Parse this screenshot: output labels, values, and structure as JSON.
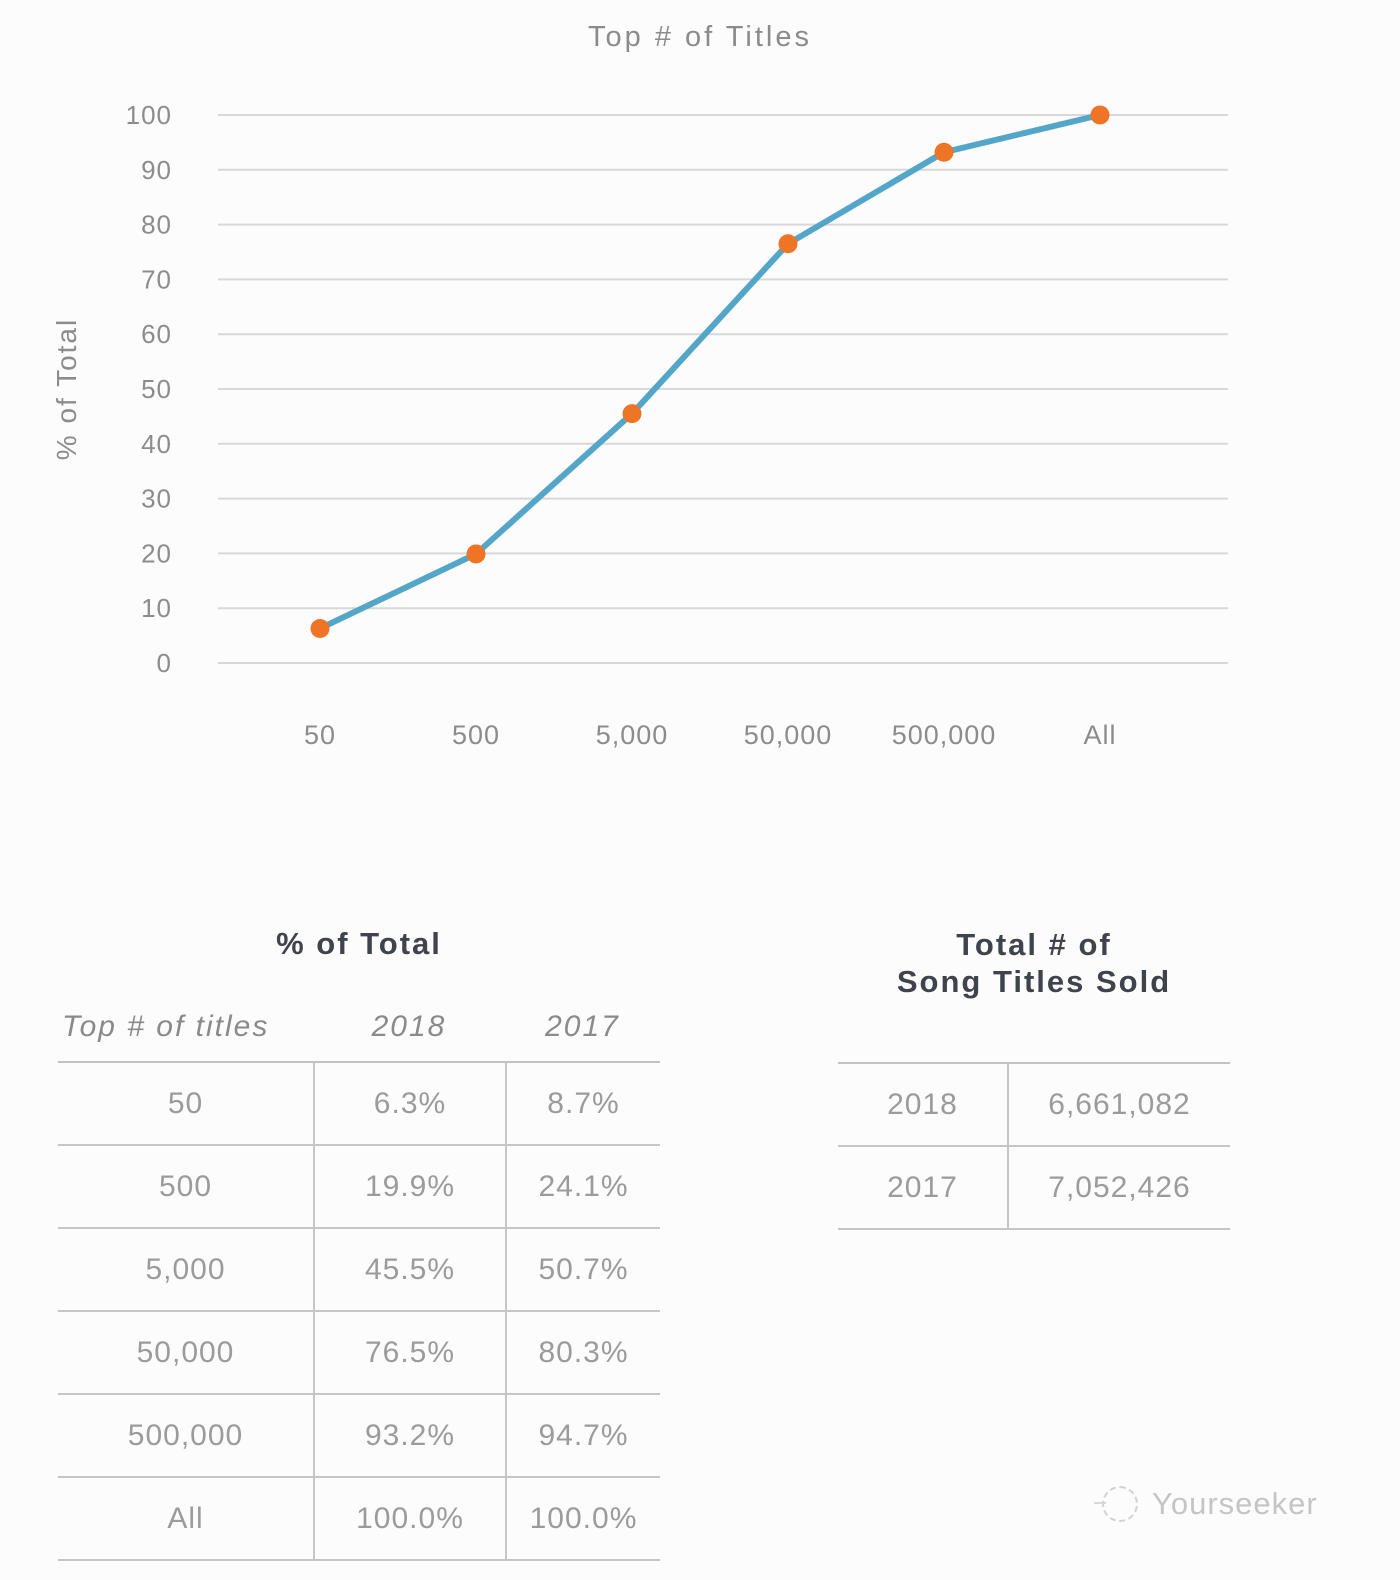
{
  "chart": {
    "title": "Top # of Titles",
    "ylabel": "% of Total"
  },
  "chart_data": {
    "type": "line",
    "title": "Top # of Titles",
    "xlabel": "",
    "ylabel": "% of Total",
    "categories": [
      "50",
      "500",
      "5,000",
      "50,000",
      "500,000",
      "All"
    ],
    "series": [
      {
        "name": "2018",
        "values": [
          6.3,
          19.9,
          45.5,
          76.5,
          93.2,
          100.0
        ]
      }
    ],
    "ylim": [
      0,
      100
    ],
    "yticks": [
      0,
      10,
      20,
      30,
      40,
      50,
      60,
      70,
      80,
      90,
      100
    ],
    "grid": true,
    "legend": "none",
    "line_color": "#54a6c8",
    "marker_color": "#ee7426"
  },
  "pct_table": {
    "title": "% of Total",
    "columns": [
      "Top # of titles",
      "2018",
      "2017"
    ],
    "rows": [
      [
        "50",
        "6.3%",
        "8.7%"
      ],
      [
        "500",
        "19.9%",
        "24.1%"
      ],
      [
        "5,000",
        "45.5%",
        "50.7%"
      ],
      [
        "50,000",
        "76.5%",
        "80.3%"
      ],
      [
        "500,000",
        "93.2%",
        "94.7%"
      ],
      [
        "All",
        "100.0%",
        "100.0%"
      ]
    ]
  },
  "totals_table": {
    "title_line1": "Total # of",
    "title_line2": "Song Titles Sold",
    "rows": [
      [
        "2018",
        "6,661,082"
      ],
      [
        "2017",
        "7,052,426"
      ]
    ]
  },
  "watermark": {
    "label": "Yourseeker"
  },
  "colors": {
    "background": "#fcfcfc",
    "gridline": "#d8d8d8",
    "table_border": "#c6c6c6",
    "axis_text": "#8c8c8c",
    "title_text": "#8b8b8b",
    "table_heading_text": "#3f444c",
    "table_value_text": "#9b9b9b",
    "line": "#54a6c8",
    "marker": "#ee7426",
    "watermark_text": "#c5c5c5"
  }
}
